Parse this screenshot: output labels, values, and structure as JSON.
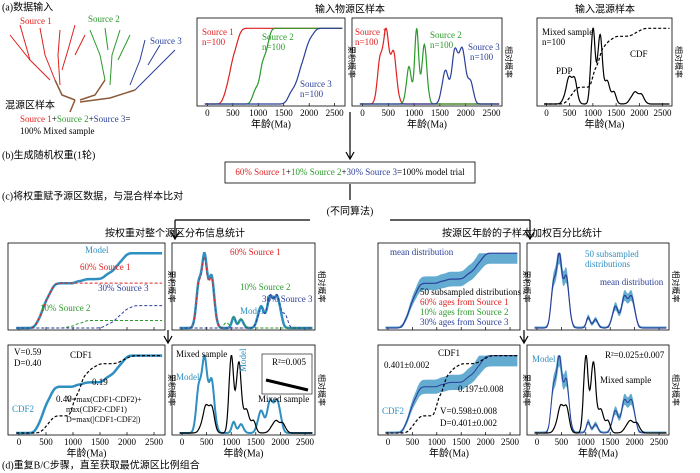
{
  "section_a": {
    "label": "(a)数据输入",
    "sources_title": "输入物源区样本",
    "mixed_title": "输入混源样本",
    "map": {
      "source1": "Source 1",
      "source2": "Source 2",
      "source3": "Source 3",
      "mixed": "混源区样本",
      "equation": [
        "Source 1",
        "+",
        "Source 2",
        "+",
        "Source 3",
        "="
      ],
      "equation_end": "100% Mixed sample"
    },
    "cdf_panel": {
      "source1": [
        "Source 1",
        "n=100"
      ],
      "source2": [
        "Source 2",
        "n=100"
      ],
      "source3": [
        "Source 3",
        "n=100"
      ]
    },
    "pdf_panel": {
      "source1": [
        "Source 1",
        "n=100"
      ],
      "source2": [
        "Source 2",
        "n=100"
      ],
      "source3": [
        "Source 3",
        "n=100"
      ]
    },
    "mixed_panel": {
      "name": "Mixed sample",
      "n": "n=100",
      "pdp": "PDP",
      "cdf": "CDF"
    }
  },
  "section_b": {
    "label": "(b)生成随机权重(1轮)",
    "model_trial": [
      "60% Source 1",
      "+",
      "10% Source 2",
      "+",
      "30% Source 3",
      "=100% model trial"
    ]
  },
  "section_c": {
    "label": "(c)将权重赋予源区数据，与混合样本比对",
    "branch": "(不同算法)",
    "left_title": "按权重对整个源区分布信息统计",
    "right_title": "按源区年龄的子样本加权百分比统计",
    "b1": {
      "model": "Model",
      "s1": "60% Source 1",
      "s3": "30% Source 3",
      "s2": "10% Source 2"
    },
    "b2": {
      "s1": "60% Source 1",
      "s2": "10% Source 2",
      "model": "Model",
      "s3": "30% Source 3"
    },
    "c1": {
      "mean": "mean distribution",
      "sub": "50 subsampled distributions",
      "s1": "60% ages from Source 1",
      "s2": "10% ages from Source 2",
      "s3": "30% ages from Source 3"
    },
    "c2": {
      "sub": [
        "50 subsampled",
        "distributions"
      ],
      "mean": "mean distribution"
    },
    "d1": {
      "v": "V=0.59",
      "d": "D=0.40",
      "cdf1": "CDF1",
      "gap1": "0.19",
      "gap2": "0.40",
      "cdf2": "CDF2",
      "formula": [
        "V=max(CDF1-CDF2)+",
        "max(CDF2-CDF1)",
        "D=max(|CDF1-CDF2|)"
      ]
    },
    "d2": {
      "mixed1": "Mixed sample",
      "model1": "Model",
      "model2": "Model",
      "mixed2": "Mixed sample",
      "r2": "R²=0.005"
    },
    "e1": {
      "cdf1": "CDF1",
      "gap1": "0.401±0.002",
      "gap2": "0.197±0.008",
      "v": "V=0.598±0.008",
      "d": "D=0.401±0.002",
      "cdf2": "CDF2"
    },
    "e2": {
      "model": "Model",
      "r2": "R²=0.025±0.007",
      "mixed": "Mixed sample"
    }
  },
  "section_d": {
    "label": "(d)重复B/C步骤，直至获取最优源区比例组合"
  },
  "axis": {
    "ticks": [
      "0",
      "500",
      "1000",
      "1500",
      "2000",
      "2500"
    ],
    "xlabel": "年龄(Ma)",
    "cumulative": "累积概率",
    "relative": "相对概率"
  }
}
